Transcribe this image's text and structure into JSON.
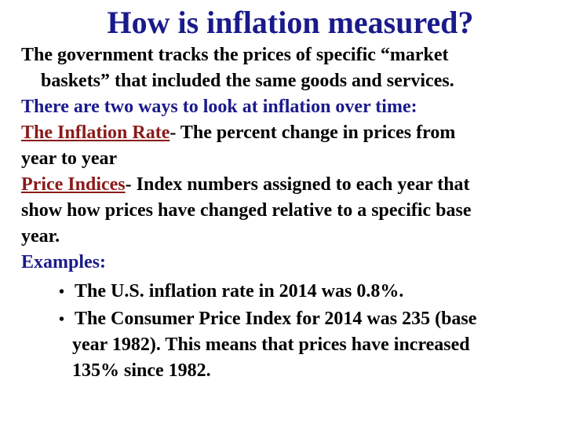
{
  "slide": {
    "title": "How is inflation measured?",
    "intro_line1": "The government tracks the prices of specific “market",
    "intro_line2": "baskets” that included the same goods and services.",
    "ways_line": "There are two ways to look at inflation over time:",
    "term1": "The Inflation Rate",
    "term1_dash": "- The percent change in prices from",
    "term1_cont": "year to year",
    "term2": "Price Indices",
    "term2_dash": "- Index numbers assigned to each year that",
    "term2_cont1": "show how prices have  changed relative to a specific base",
    "term2_cont2": "year.",
    "examples_label": "Examples:",
    "bullet_glyph": "•",
    "example1": "The U.S. inflation rate in 2014 was 0.8%.",
    "example2_line1": "The Consumer Price Index for 2014 was 235 (base",
    "example2_line2": "year 1982).  This means that prices have increased",
    "example2_line3": "135% since 1982.",
    "colors": {
      "title": "#1a1a8c",
      "term": "#8b1a1a",
      "body": "#000000",
      "background": "#ffffff"
    }
  }
}
